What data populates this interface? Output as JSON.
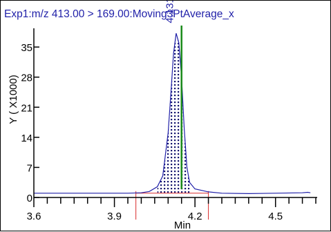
{
  "chart_data": {
    "type": "line",
    "title": "Exp1:m/z 413.00 > 169.00:Moving3PtAverage_x",
    "xlabel": "Min",
    "ylabel": "Y ( X1000)",
    "xlim": [
      3.6,
      4.65
    ],
    "ylim": [
      0,
      40
    ],
    "x_ticks": [
      3.6,
      3.9,
      4.2,
      4.5
    ],
    "x_tick_labels": [
      "3.6",
      "3.9",
      "4.2",
      "4.5"
    ],
    "y_ticks": [
      0,
      7,
      14,
      21,
      28,
      35
    ],
    "y_tick_labels": [
      "0",
      "7",
      "14",
      "21",
      "28",
      "35"
    ],
    "grid": false,
    "series": [
      {
        "x": [
          3.6,
          3.7,
          3.8,
          3.9,
          3.95,
          4.0,
          4.03,
          4.06,
          4.08,
          4.1,
          4.11,
          4.12,
          4.13,
          4.14,
          4.15,
          4.16,
          4.17,
          4.18,
          4.2,
          4.25,
          4.3,
          4.4,
          4.5,
          4.6,
          4.62,
          4.63
        ],
        "values": [
          1.0,
          1.0,
          1.0,
          1.0,
          1.0,
          1.1,
          1.4,
          2.5,
          5.0,
          15.0,
          24.0,
          33.5,
          38.2,
          36.0,
          28.0,
          16.0,
          7.0,
          3.5,
          2.0,
          1.3,
          1.0,
          0.9,
          1.0,
          1.1,
          1.2,
          1.1
        ]
      }
    ],
    "peak": {
      "label": "4.131",
      "x": 4.131,
      "integration_start": 4.06,
      "integration_end": 4.18
    },
    "marker_line_x": 4.15,
    "baseline_x": [
      3.98,
      4.25
    ],
    "colors": {
      "trace": "#1f1fa8",
      "fill_dots": "#14146e",
      "marker": "#1a8a1a",
      "baseline": "#d92a2a",
      "axis": "#000000"
    }
  }
}
